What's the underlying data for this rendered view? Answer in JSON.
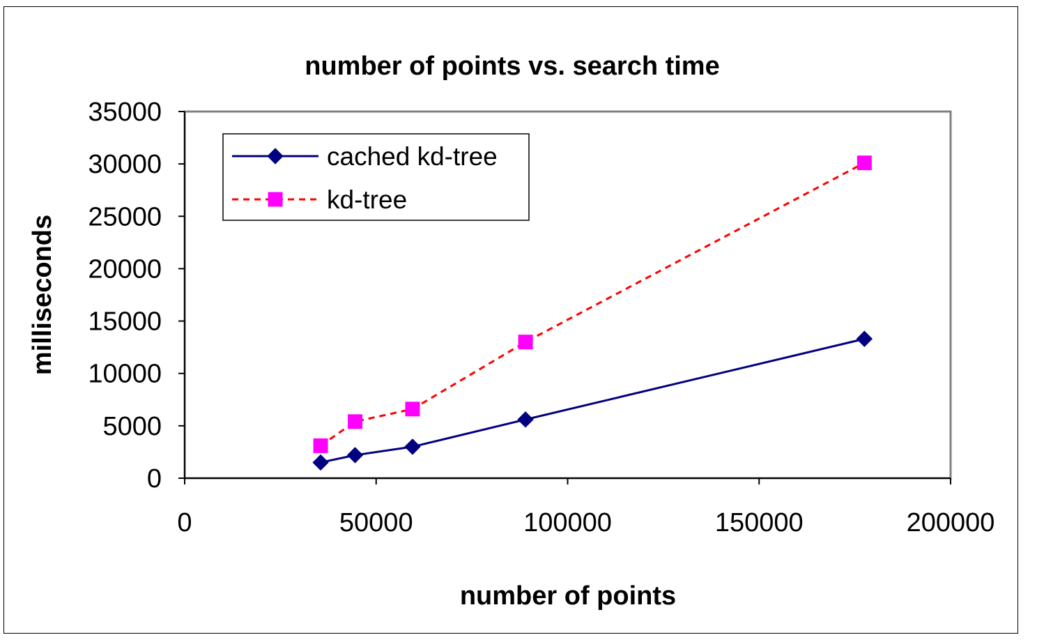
{
  "chart_data": {
    "type": "line",
    "title": "number of points vs. search time",
    "xlabel": "number of points",
    "ylabel": "milliseconds",
    "xlim": [
      0,
      200000
    ],
    "ylim": [
      0,
      35000
    ],
    "xticks": [
      0,
      50000,
      100000,
      150000,
      200000
    ],
    "yticks": [
      0,
      5000,
      10000,
      15000,
      20000,
      25000,
      30000,
      35000
    ],
    "xtick_labels": [
      "0",
      "50000",
      "100000",
      "150000",
      "200000"
    ],
    "ytick_labels": [
      "0",
      "5000",
      "10000",
      "15000",
      "20000",
      "25000",
      "30000",
      "35000"
    ],
    "grid": false,
    "legend_position": "top-left",
    "series": [
      {
        "name": "cached kd-tree",
        "color": "#000080",
        "marker": "diamond",
        "line_style": "solid",
        "x": [
          35500,
          44500,
          59500,
          89000,
          177500
        ],
        "y": [
          1500,
          2200,
          3000,
          5600,
          13300
        ]
      },
      {
        "name": "kd-tree",
        "color": "#ff0000",
        "marker_color": "#ff00ff",
        "marker": "square",
        "line_style": "dashed",
        "x": [
          35500,
          44500,
          59500,
          89000,
          177500
        ],
        "y": [
          3100,
          5400,
          6600,
          13000,
          30100
        ]
      }
    ]
  }
}
